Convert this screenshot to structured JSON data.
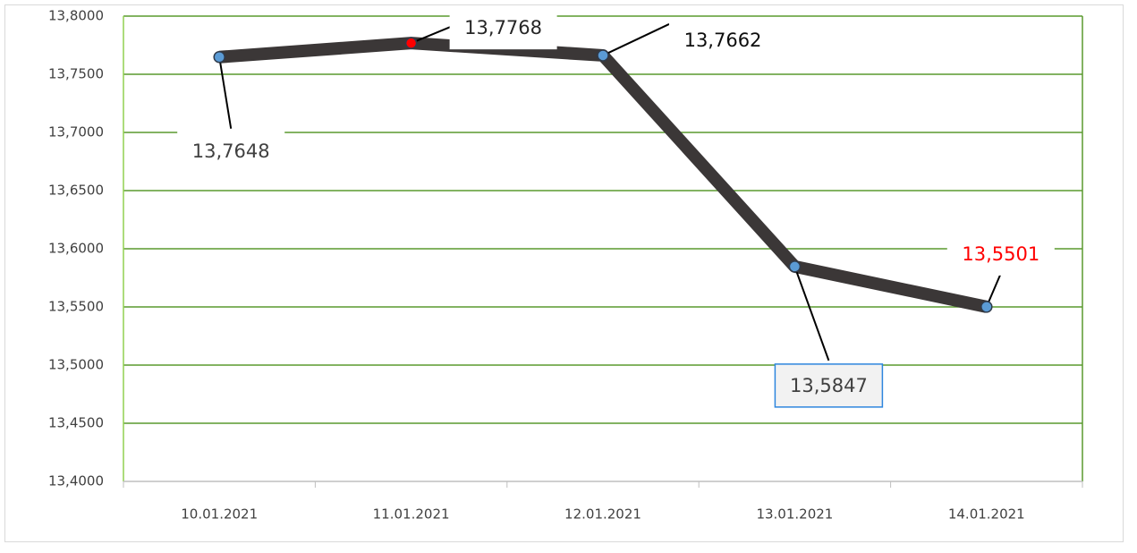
{
  "chart_data": {
    "type": "line",
    "categories": [
      "10.01.2021",
      "11.01.2021",
      "12.01.2021",
      "13.01.2021",
      "14.01.2021"
    ],
    "series": [
      {
        "color": "#3b3737",
        "values": [
          13.7648,
          13.7768,
          13.7662,
          13.5847,
          13.5501
        ],
        "value_labels": [
          "13,7648",
          "13,7768",
          "13,7662",
          "13,5847",
          "13,5501"
        ],
        "value_label_colors": [
          "#404040",
          "#262626",
          "#0d0d0d",
          "#404040",
          "#ff0000"
        ],
        "marker_color": "#5b9bd5",
        "marker_colors": [
          "#5b9bd5",
          "#ff0000",
          "#5b9bd5",
          "#5b9bd5",
          "#5b9bd5"
        ]
      }
    ],
    "ylim": [
      13.4,
      13.8
    ],
    "yticks": [
      {
        "value": 13.4,
        "label": "13,4000"
      },
      {
        "value": 13.45,
        "label": "13,4500"
      },
      {
        "value": 13.5,
        "label": "13,5000"
      },
      {
        "value": 13.55,
        "label": "13,5500"
      },
      {
        "value": 13.6,
        "label": "13,6000"
      },
      {
        "value": 13.65,
        "label": "13,6500"
      },
      {
        "value": 13.7,
        "label": "13,7000"
      },
      {
        "value": 13.75,
        "label": "13,7500"
      },
      {
        "value": 13.8,
        "label": "13,8000"
      }
    ],
    "grid": true,
    "grid_color": "#5a9a2e"
  }
}
